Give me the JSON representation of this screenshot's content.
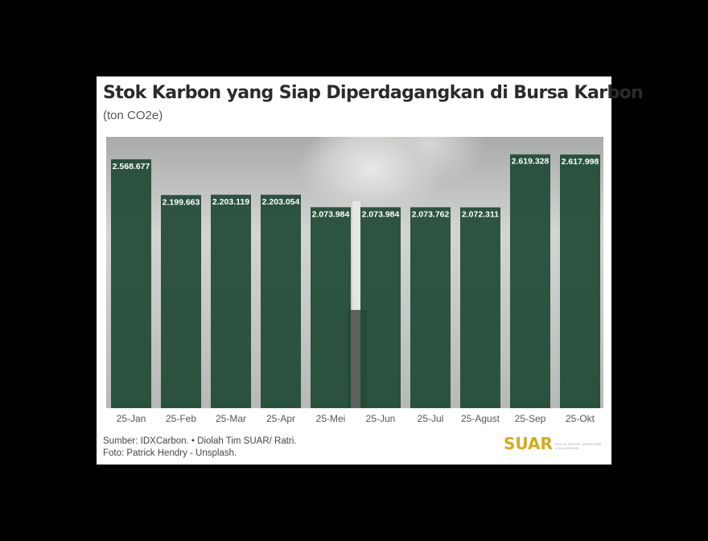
{
  "chart_data": {
    "type": "bar",
    "title": "Stok Karbon yang Siap Diperdagangkan di Bursa Karbon",
    "subtitle": "(ton CO2e)",
    "categories": [
      "25-Jan",
      "25-Feb",
      "25-Mar",
      "25-Apr",
      "25-Mei",
      "25-Jun",
      "25-Jul",
      "25-Agust",
      "25-Sep",
      "25-Okt"
    ],
    "values": [
      2568677,
      2199663,
      2203119,
      2203054,
      2073984,
      2073984,
      2073762,
      2072311,
      2619328,
      2617998
    ],
    "data_labels": [
      "2.568.677",
      "2.199.663",
      "2.203.119",
      "2.203.054",
      "2.073.984",
      "2.073.984",
      "2.073.762",
      "2.072.311",
      "2.619.328",
      "2.617.998"
    ],
    "ylim": [
      0,
      2800000
    ],
    "grid": false,
    "bar_color": "#1f4a35"
  },
  "footer": {
    "source": "Sumber: IDXCarbon. • Diolah Tim SUAR/ Ratri.",
    "photo": "Foto: Patrick Hendry - Unsplash.",
    "logo": "SUAR",
    "logo_tagline": "SOLUSI INOVASI JURNALISME & KOLABORASI"
  }
}
